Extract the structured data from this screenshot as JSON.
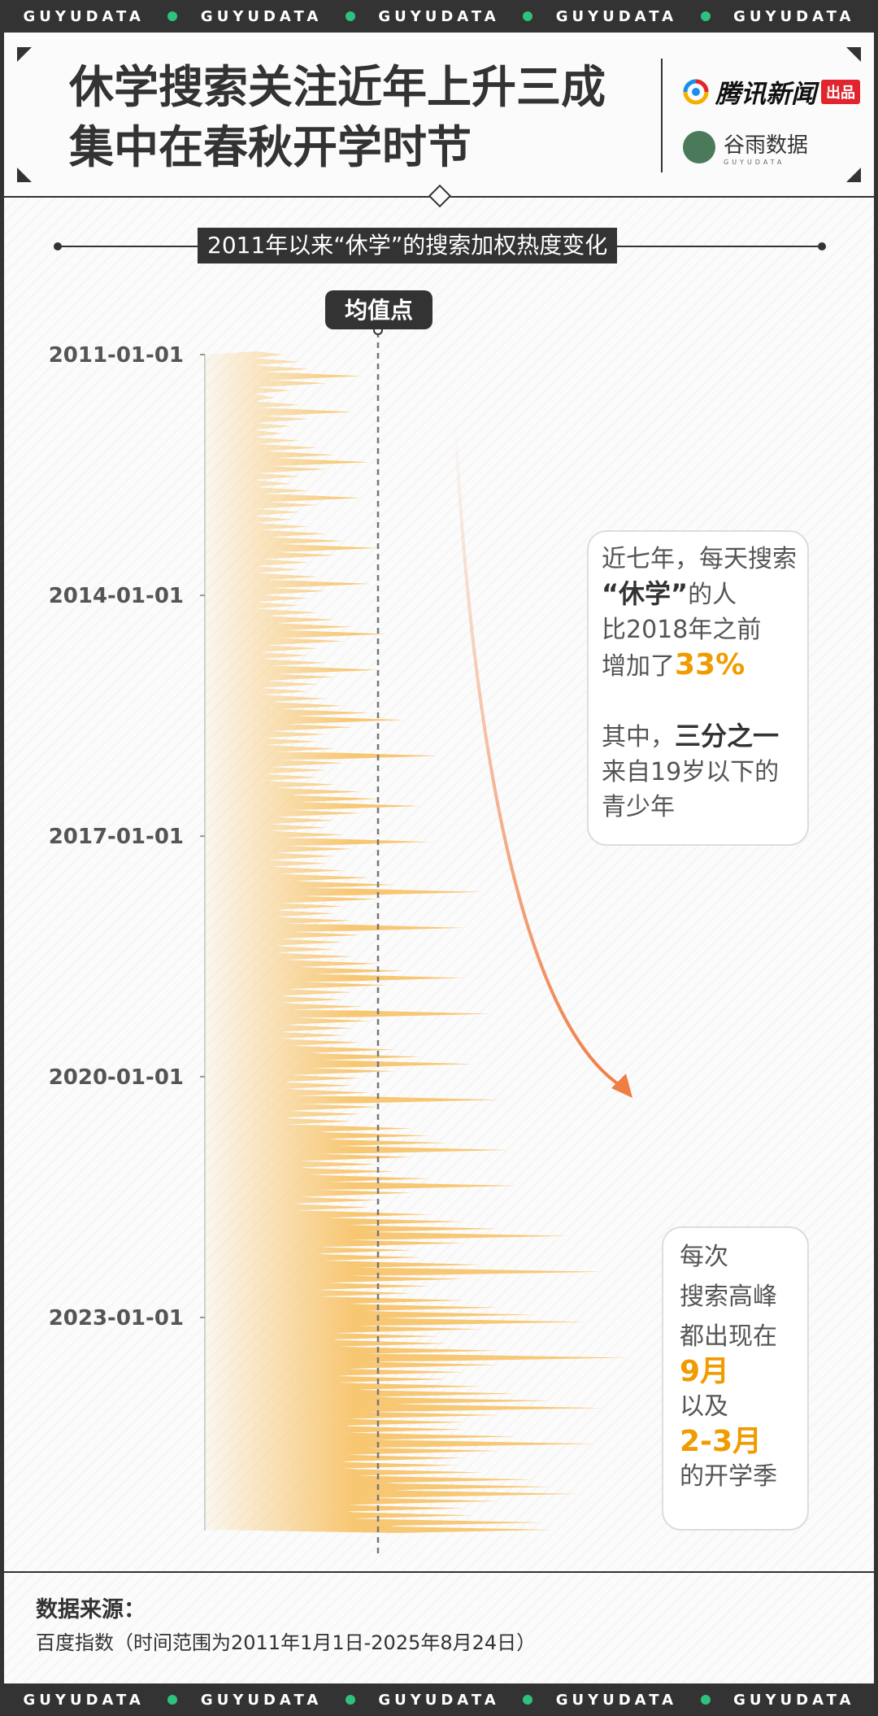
{
  "strip": {
    "word": "GUYUDATA"
  },
  "header": {
    "title_line1": "休学搜索关注近年上升三成",
    "title_line2": "集中在春秋开学时节",
    "logo_tencent": "腾讯新闻",
    "logo_tencent_badge": "出品",
    "logo_guyu": "谷雨数据",
    "logo_guyu_sub": "GUYUDATA"
  },
  "chart_data": {
    "type": "area",
    "title": "2011年以来“休学”的搜索加权热度变化",
    "orientation": "vertical-time",
    "y_ticks": [
      "2011-01-01",
      "2014-01-01",
      "2017-01-01",
      "2020-01-01",
      "2023-01-01"
    ],
    "date_range": [
      "2011-01-01",
      "2025-08-24"
    ],
    "mean_label": "均值点",
    "values_relative_to_mean": [
      0.45,
      0.55,
      0.6,
      0.9,
      0.7,
      0.5,
      0.4,
      0.55,
      0.85,
      0.6,
      0.5,
      0.45,
      0.55,
      0.65,
      0.75,
      0.95,
      0.7,
      0.55,
      0.5,
      0.6,
      0.9,
      0.65,
      0.55,
      0.5,
      0.6,
      0.7,
      0.8,
      1.0,
      0.75,
      0.6,
      0.55,
      0.65,
      0.95,
      0.7,
      0.6,
      0.55,
      0.65,
      0.75,
      0.85,
      1.05,
      0.8,
      0.65,
      0.6,
      0.7,
      1.0,
      0.75,
      0.65,
      0.6,
      0.7,
      0.8,
      0.95,
      1.15,
      0.85,
      0.7,
      0.65,
      0.75,
      1.35,
      0.8,
      0.7,
      0.65,
      0.75,
      0.9,
      1.0,
      1.25,
      0.9,
      0.75,
      0.7,
      0.8,
      1.3,
      0.85,
      0.75,
      0.7,
      0.8,
      0.95,
      1.1,
      1.6,
      1.0,
      0.8,
      0.75,
      0.85,
      1.5,
      0.9,
      0.8,
      0.75,
      0.85,
      1.0,
      1.15,
      1.5,
      1.05,
      0.85,
      0.8,
      0.9,
      1.65,
      0.95,
      0.85,
      0.8,
      0.9,
      1.1,
      1.25,
      1.55,
      1.1,
      0.9,
      0.85,
      0.95,
      1.7,
      1.0,
      0.9,
      0.85,
      1.2,
      1.3,
      1.4,
      1.75,
      1.2,
      1.0,
      1.1,
      1.3,
      1.8,
      1.2,
      1.0,
      0.95,
      1.3,
      1.5,
      1.7,
      2.1,
      1.5,
      1.2,
      1.25,
      1.6,
      2.3,
      1.5,
      1.3,
      1.2,
      1.5,
      1.7,
      1.9,
      2.2,
      1.6,
      1.35,
      1.4,
      1.7,
      2.45,
      1.7,
      1.5,
      1.4,
      1.6,
      1.8,
      2.0,
      2.3,
      1.7,
      1.5,
      1.5,
      1.8,
      2.25,
      1.7,
      1.5,
      1.45,
      1.6,
      1.9,
      2.0,
      2.15,
      1.7,
      1.5,
      1.55,
      1.95,
      2.0
    ]
  },
  "callouts": {
    "c1_line1": "近七年，每天搜索",
    "c1_line2_strong": "“休学”",
    "c1_line2_rest": "的人",
    "c1_line3": "比2018年之前",
    "c1_line4_pre": "增加了",
    "c1_line4_accent": "33%",
    "c1_line5_pre": "其中，",
    "c1_line5_strong": "三分之一",
    "c1_line6": "来自19岁以下的",
    "c1_line7": "青少年",
    "c2_line1": "每次",
    "c2_line2": "搜索高峰",
    "c2_line3": "都出现在",
    "c2_line4_accent": "9月",
    "c2_line5": "以及",
    "c2_line6_accent": "2-3月",
    "c2_line7": "的开学季"
  },
  "footer": {
    "source_title": "数据来源：",
    "source_text": "百度指数（时间范围为2011年1月1日-2025年8月24日）"
  },
  "colors": {
    "accent": "#f09b00",
    "area": "#f7c46b",
    "arrow": "#ef7e45",
    "dark": "#333333",
    "dot": "#2ec27e"
  }
}
